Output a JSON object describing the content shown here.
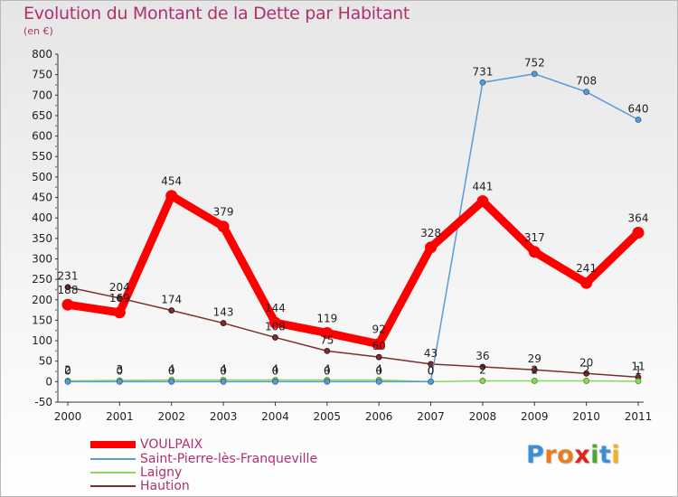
{
  "chart_data": {
    "type": "line",
    "title": "Evolution du Montant de la Dette par Habitant",
    "subtitle": "(en €)",
    "x": [
      "2000",
      "2001",
      "2002",
      "2003",
      "2004",
      "2005",
      "2006",
      "2007",
      "2008",
      "2009",
      "2010",
      "2011"
    ],
    "ylim": [
      -50,
      800
    ],
    "yticks": [
      -50,
      0,
      50,
      100,
      150,
      200,
      250,
      300,
      350,
      400,
      450,
      500,
      550,
      600,
      650,
      700,
      750,
      800
    ],
    "grid": false,
    "legend_position": "bottom-left",
    "series": [
      {
        "name": "VOULPAIX",
        "color": "#ff0000",
        "values": [
          188,
          169,
          454,
          379,
          144,
          119,
          92,
          328,
          441,
          317,
          241,
          364
        ],
        "labels": [
          "188",
          "169",
          "454",
          "379",
          "144",
          "119",
          "92",
          "328",
          "441",
          "317",
          "241",
          "364"
        ]
      },
      {
        "name": "Saint-Pierre-lès-Franqueville",
        "color": "#5b9bd5",
        "values": [
          0,
          0,
          0,
          0,
          0,
          0,
          0,
          0,
          731,
          752,
          708,
          640
        ],
        "labels": [
          "0",
          "0",
          "0",
          "0",
          "0",
          "0",
          "0",
          "0",
          "731",
          "752",
          "708",
          "640"
        ]
      },
      {
        "name": "Laigny",
        "color": "#8ed65a",
        "values": [
          2,
          3,
          4,
          4,
          4,
          4,
          4,
          0,
          2,
          2,
          2,
          1
        ],
        "labels": [
          "2",
          "3",
          "4",
          "4",
          "4",
          "4",
          "4",
          "0",
          "2",
          "2",
          "2",
          "1"
        ]
      },
      {
        "name": "Haution",
        "color": "#7a2f2f",
        "values": [
          231,
          204,
          174,
          143,
          108,
          75,
          60,
          43,
          36,
          29,
          20,
          11
        ],
        "labels": [
          "231",
          "204",
          "174",
          "143",
          "108",
          "75",
          "60",
          "43",
          "36",
          "29",
          "20",
          "11"
        ]
      }
    ]
  },
  "logo": {
    "letters": [
      "P",
      "r",
      "o",
      "x",
      "i",
      "t",
      "i"
    ],
    "colors": [
      "#3a8fd6",
      "#e87c1e",
      "#e87c1e",
      "#e0261a",
      "#4aa832",
      "#3a8fd6",
      "#f2b01e"
    ]
  }
}
